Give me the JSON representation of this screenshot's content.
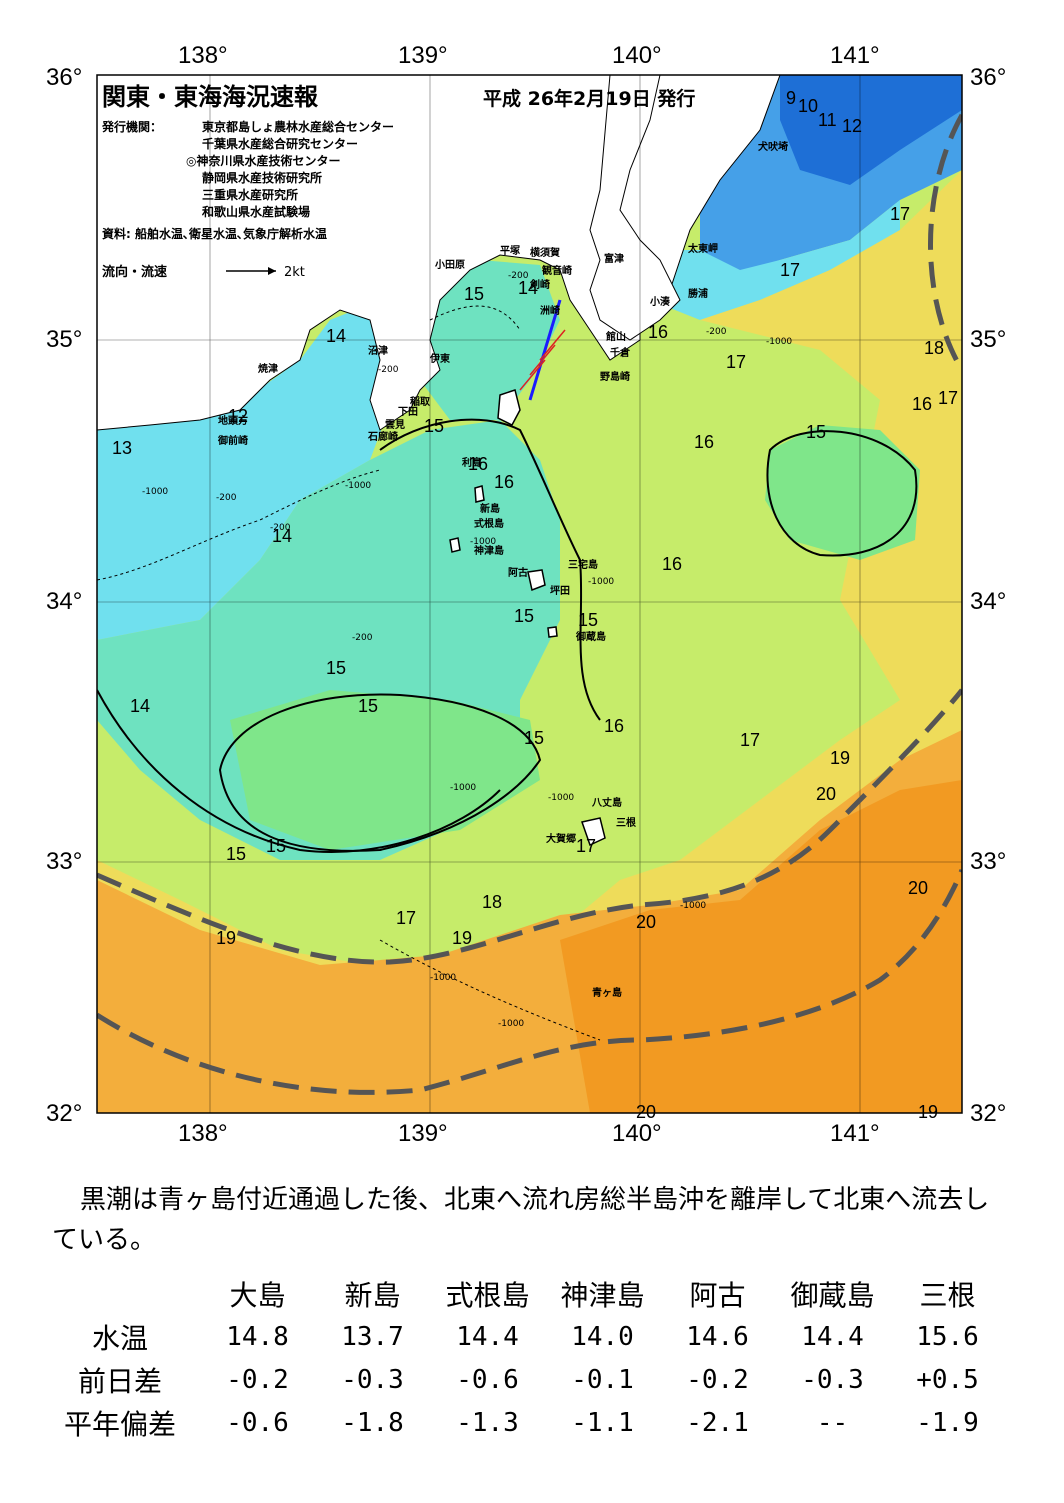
{
  "header": {
    "title": "関東・東海海況速報",
    "issue_date": "平成 26年2月19日 発行",
    "publisher_label": "発行機関：",
    "publishers": [
      "東京都島しょ農林水産総合センター",
      "千葉県水産総合研究センター",
      "◎神奈川県水産技術センター",
      "静岡県水産技術研究所",
      "三重県水産研究所",
      "和歌山県水産試験場"
    ],
    "sources": "資料: 船舶水温､衛星水温､気象庁解析水温",
    "legend_label": "流向・流速",
    "legend_scale": "2kt"
  },
  "axes": {
    "lon_labels": [
      "138°",
      "139°",
      "140°",
      "141°"
    ],
    "lat_labels": [
      "36°",
      "35°",
      "34°",
      "33°",
      "32°"
    ],
    "lon_values": [
      138,
      139,
      140,
      141
    ],
    "lat_values": [
      36,
      35,
      34,
      33,
      32
    ]
  },
  "place_names": [
    {
      "name": "犬吠埼"
    },
    {
      "name": "太東岬"
    },
    {
      "name": "勝浦"
    },
    {
      "name": "小湊"
    },
    {
      "name": "富津"
    },
    {
      "name": "横須賀"
    },
    {
      "name": "観音崎"
    },
    {
      "name": "平塚"
    },
    {
      "name": "小田原"
    },
    {
      "name": "剣崎"
    },
    {
      "name": "洲崎"
    },
    {
      "name": "館山"
    },
    {
      "name": "千倉"
    },
    {
      "name": "野島崎"
    },
    {
      "name": "沼津"
    },
    {
      "name": "伊東"
    },
    {
      "name": "焼津"
    },
    {
      "name": "稲取"
    },
    {
      "name": "下田"
    },
    {
      "name": "雲見"
    },
    {
      "name": "石廊崎"
    },
    {
      "name": "地頭方"
    },
    {
      "name": "御前崎"
    },
    {
      "name": "利島"
    },
    {
      "name": "新島"
    },
    {
      "name": "式根島"
    },
    {
      "name": "神津島"
    },
    {
      "name": "三宅島"
    },
    {
      "name": "阿古"
    },
    {
      "name": "坪田"
    },
    {
      "name": "御蔵島"
    },
    {
      "name": "八丈島"
    },
    {
      "name": "三根"
    },
    {
      "name": "大賀郷"
    },
    {
      "name": "青ヶ島"
    }
  ],
  "sst_labels": [
    {
      "t": "9"
    },
    {
      "t": "10"
    },
    {
      "t": "11"
    },
    {
      "t": "12"
    },
    {
      "t": "17"
    },
    {
      "t": "17"
    },
    {
      "t": "16"
    },
    {
      "t": "17"
    },
    {
      "t": "18"
    },
    {
      "t": "16"
    },
    {
      "t": "17"
    },
    {
      "t": "15"
    },
    {
      "t": "16"
    },
    {
      "t": "15"
    },
    {
      "t": "14"
    },
    {
      "t": "14"
    },
    {
      "t": "12"
    },
    {
      "t": "13"
    },
    {
      "t": "15"
    },
    {
      "t": "16"
    },
    {
      "t": "14"
    },
    {
      "t": "16"
    },
    {
      "t": "16"
    },
    {
      "t": "15"
    },
    {
      "t": "15"
    },
    {
      "t": "15"
    },
    {
      "t": "15"
    },
    {
      "t": "14"
    },
    {
      "t": "15"
    },
    {
      "t": "16"
    },
    {
      "t": "17"
    },
    {
      "t": "19"
    },
    {
      "t": "20"
    },
    {
      "t": "17"
    },
    {
      "t": "15"
    },
    {
      "t": "15"
    },
    {
      "t": "17"
    },
    {
      "t": "18"
    },
    {
      "t": "19"
    },
    {
      "t": "19"
    },
    {
      "t": "20"
    },
    {
      "t": "20"
    },
    {
      "t": "20"
    },
    {
      "t": "19"
    }
  ],
  "depth_labels": [
    "-200",
    "-200",
    "-200",
    "-1000",
    "-200",
    "-1000",
    "-1000",
    "-200",
    "-1000",
    "-1000",
    "-1000",
    "-1000",
    "-1000",
    "-1000",
    "-1000",
    "-200"
  ],
  "colors": {
    "cold": "#1e6fd6",
    "blue": "#45a0e8",
    "cyan": "#70e0ee",
    "teal": "#6ee2c0",
    "green": "#7fe68a",
    "lime": "#c6ec6a",
    "yellow": "#eedc5a",
    "orange_light": "#f3ae3c",
    "orange": "#f29a22",
    "land": "#ffffff",
    "kuroshio": "#555555"
  },
  "description": "黒潮は青ヶ島付近通過した後、北東へ流れ房総半島沖を離岸して北東へ流去している。",
  "table": {
    "columns": [
      "大島",
      "新島",
      "式根島",
      "神津島",
      "阿古",
      "御蔵島",
      "三根"
    ],
    "rows": [
      {
        "label": "水温",
        "values": [
          "14.8",
          "13.7",
          "14.4",
          "14.0",
          "14.6",
          "14.4",
          "15.6"
        ]
      },
      {
        "label": "前日差",
        "values": [
          "-0.2",
          "-0.3",
          "-0.6",
          "-0.1",
          "-0.2",
          "-0.3",
          "+0.5"
        ]
      },
      {
        "label": "平年偏差",
        "values": [
          "-0.6",
          "-1.8",
          "-1.3",
          "-1.1",
          "-2.1",
          "--",
          "-1.9"
        ]
      }
    ]
  }
}
